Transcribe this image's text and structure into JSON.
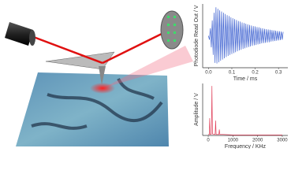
{
  "chart_data": [
    {
      "type": "line",
      "x_label": "Time / ms",
      "y_label": "Photodiode Read Out / V",
      "xlim": [
        -0.025,
        0.34
      ],
      "xticks": [
        {
          "value": 0,
          "label": "0.0"
        },
        0.1,
        0.2,
        0.3
      ],
      "ylim": [
        -1.05,
        1.05
      ],
      "x": [
        0,
        0.004,
        0.008,
        0.012,
        0.016,
        0.02,
        0.024,
        0.028,
        0.032,
        0.036,
        0.04,
        0.044,
        0.048,
        0.052,
        0.056,
        0.06,
        0.064,
        0.068,
        0.072,
        0.076,
        0.08,
        0.084,
        0.088,
        0.092,
        0.096,
        0.1,
        0.104,
        0.108,
        0.112,
        0.116,
        0.12,
        0.124,
        0.128,
        0.132,
        0.136,
        0.14,
        0.144,
        0.148,
        0.152,
        0.156,
        0.16,
        0.164,
        0.168,
        0.172,
        0.176,
        0.18,
        0.184,
        0.188,
        0.192,
        0.196,
        0.2,
        0.204,
        0.208,
        0.212,
        0.216,
        0.22,
        0.224,
        0.228,
        0.232,
        0.236,
        0.24,
        0.244,
        0.248,
        0.252,
        0.256,
        0.26,
        0.264,
        0.268,
        0.272,
        0.276,
        0.28,
        0.284,
        0.288,
        0.292,
        0.296,
        0.3,
        0.304,
        0.308,
        0.312,
        0.316,
        0.32
      ],
      "series": [
        {
          "color": "#3b5fd0",
          "values": [
            0,
            -0.13,
            0.25,
            -0.38,
            0.51,
            -0.63,
            0.76,
            -0.89,
            0.94,
            -0.91,
            0.89,
            -0.87,
            0.84,
            -0.82,
            0.8,
            -0.78,
            0.76,
            -0.74,
            0.72,
            -0.7,
            0.68,
            -0.66,
            0.65,
            -0.63,
            0.61,
            -0.6,
            0.58,
            -0.57,
            0.55,
            -0.54,
            0.52,
            -0.51,
            0.49,
            -0.48,
            0.47,
            -0.46,
            0.44,
            -0.43,
            0.42,
            -0.41,
            0.4,
            -0.39,
            0.38,
            -0.37,
            0.36,
            -0.35,
            0.34,
            -0.33,
            0.32,
            -0.31,
            0.31,
            -0.3,
            0.29,
            -0.28,
            0.28,
            -0.27,
            0.26,
            -0.25,
            0.25,
            -0.24,
            0.23,
            -0.23,
            0.22,
            -0.22,
            0.21,
            -0.21,
            0.2,
            -0.19,
            0.19,
            -0.18,
            0.18,
            -0.17,
            0.17,
            -0.16,
            0.16,
            -0.15,
            0.15,
            -0.14,
            0.14,
            -0.13,
            0.13
          ]
        }
      ]
    },
    {
      "type": "line",
      "x_label": "Frequency / KHz",
      "y_label": "Amplitude / V",
      "xlim": [
        -225,
        3225
      ],
      "xticks": [
        0,
        1000,
        2000,
        3000
      ],
      "ylim": [
        0,
        1.05
      ],
      "x": [
        0,
        40,
        60,
        80,
        130,
        150,
        170,
        280,
        300,
        320,
        430,
        450,
        470,
        600,
        1000,
        1500,
        2000,
        2500,
        3000
      ],
      "series": [
        {
          "color": "#e0405a",
          "values": [
            0.02,
            0.02,
            0.35,
            0.02,
            0.03,
            1.0,
            0.03,
            0.02,
            0.3,
            0.02,
            0.02,
            0.12,
            0.02,
            0.02,
            0.01,
            0.01,
            0.01,
            0.01,
            0.01
          ]
        }
      ]
    }
  ]
}
